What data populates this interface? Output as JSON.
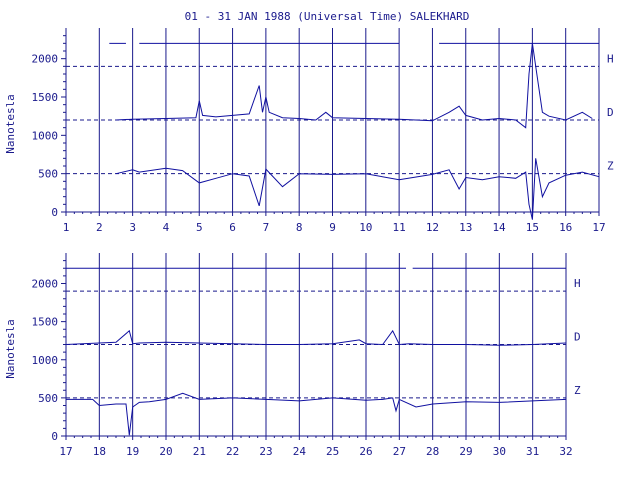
{
  "chart_data": [
    {
      "type": "line",
      "title": "01 - 31 JAN 1988 (Universal Time) SALEKHARD",
      "ylabel": "Nanotesla",
      "xlim": [
        1,
        17
      ],
      "ylim": [
        0,
        2400
      ],
      "x_ticks": [
        "1",
        "2",
        "3",
        "4",
        "5",
        "6",
        "7",
        "8",
        "9",
        "10",
        "11",
        "12",
        "13",
        "14",
        "15",
        "16",
        "17"
      ],
      "y_ticks": [
        "0",
        "500",
        "1000",
        "1500",
        "2000"
      ],
      "grid": "vertical-day-lines",
      "series": [
        {
          "name": "H",
          "baseline": 1900,
          "x": [
            2.3,
            2.8,
            3.2,
            6.0,
            6.5,
            9.2,
            9.8,
            11.0,
            11.1,
            12.0,
            12.2,
            17.0
          ],
          "y": [
            2200,
            2200,
            2200,
            2200,
            2200,
            2200,
            2200,
            2200,
            null,
            null,
            2200,
            2200
          ],
          "segments": [
            [
              2.3,
              2.8
            ],
            [
              3.2,
              11.0
            ],
            [
              12.2,
              17.0
            ]
          ]
        },
        {
          "name": "D",
          "baseline": 1200,
          "x": [
            2.5,
            3.0,
            4.0,
            4.9,
            5.0,
            5.1,
            5.5,
            6.0,
            6.5,
            6.8,
            6.9,
            7.0,
            7.1,
            7.5,
            8.0,
            8.5,
            8.8,
            9.0,
            10.0,
            11.0,
            12.0,
            12.5,
            12.8,
            13.0,
            13.5,
            14.0,
            14.5,
            14.8,
            14.9,
            15.0,
            15.1,
            15.3,
            15.5,
            16.0,
            16.5,
            16.8
          ],
          "y": [
            1200,
            1210,
            1220,
            1230,
            1450,
            1260,
            1240,
            1260,
            1280,
            1650,
            1300,
            1500,
            1300,
            1230,
            1220,
            1200,
            1300,
            1230,
            1220,
            1210,
            1190,
            1300,
            1380,
            1260,
            1200,
            1220,
            1200,
            1100,
            1800,
            2200,
            1900,
            1300,
            1250,
            1200,
            1300,
            1220
          ]
        },
        {
          "name": "Z",
          "baseline": 500,
          "x": [
            2.5,
            3.0,
            3.2,
            4.0,
            4.5,
            5.0,
            5.5,
            6.0,
            6.5,
            6.8,
            7.0,
            7.5,
            8.0,
            9.0,
            10.0,
            11.0,
            12.0,
            12.5,
            12.8,
            13.0,
            13.5,
            14.0,
            14.5,
            14.8,
            14.9,
            15.0,
            15.1,
            15.3,
            15.5,
            16.0,
            16.5,
            17.0
          ],
          "y": [
            500,
            550,
            520,
            570,
            540,
            380,
            440,
            500,
            470,
            80,
            560,
            330,
            500,
            490,
            500,
            420,
            490,
            550,
            300,
            450,
            420,
            460,
            440,
            520,
            100,
            -100,
            700,
            200,
            380,
            480,
            520,
            460
          ]
        }
      ]
    },
    {
      "type": "line",
      "title": "",
      "ylabel": "Nanotesla",
      "xlim": [
        17,
        32
      ],
      "ylim": [
        0,
        2400
      ],
      "x_ticks": [
        "17",
        "18",
        "19",
        "20",
        "21",
        "22",
        "23",
        "24",
        "25",
        "26",
        "27",
        "28",
        "29",
        "30",
        "31",
        "32"
      ],
      "y_ticks": [
        "0",
        "500",
        "1000",
        "1500",
        "2000"
      ],
      "grid": "vertical-day-lines",
      "series": [
        {
          "name": "H",
          "baseline": 1900,
          "x": [
            17.0,
            27.2,
            27.3,
            32.0
          ],
          "y": [
            2200,
            2200,
            null,
            2200
          ],
          "segments": [
            [
              17.0,
              27.2
            ],
            [
              27.4,
              32.0
            ]
          ]
        },
        {
          "name": "D",
          "baseline": 1200,
          "x": [
            17.0,
            18.0,
            18.5,
            18.9,
            19.0,
            19.2,
            20.0,
            21.0,
            22.0,
            23.0,
            24.0,
            25.0,
            25.8,
            26.0,
            26.5,
            26.8,
            27.0,
            27.3,
            28.0,
            29.0,
            30.0,
            31.0,
            32.0
          ],
          "y": [
            1200,
            1220,
            1230,
            1380,
            1210,
            1220,
            1230,
            1220,
            1210,
            1200,
            1200,
            1210,
            1260,
            1210,
            1200,
            1380,
            1200,
            1210,
            1200,
            1200,
            1190,
            1200,
            1220
          ]
        },
        {
          "name": "Z",
          "baseline": 500,
          "x": [
            17.0,
            17.8,
            18.0,
            18.5,
            18.8,
            18.9,
            19.0,
            19.2,
            19.5,
            20.0,
            20.5,
            21.0,
            22.0,
            23.0,
            24.0,
            25.0,
            26.0,
            26.5,
            26.8,
            26.9,
            27.0,
            27.5,
            28.0,
            29.0,
            30.0,
            31.0,
            32.0
          ],
          "y": [
            480,
            480,
            400,
            420,
            420,
            10,
            380,
            440,
            450,
            480,
            560,
            480,
            500,
            480,
            460,
            500,
            470,
            480,
            500,
            330,
            480,
            380,
            420,
            450,
            440,
            460,
            480
          ]
        }
      ]
    }
  ],
  "colors": {
    "axis": "#1a1a8c",
    "trace": "#1010a0",
    "background": "#ffffff"
  }
}
